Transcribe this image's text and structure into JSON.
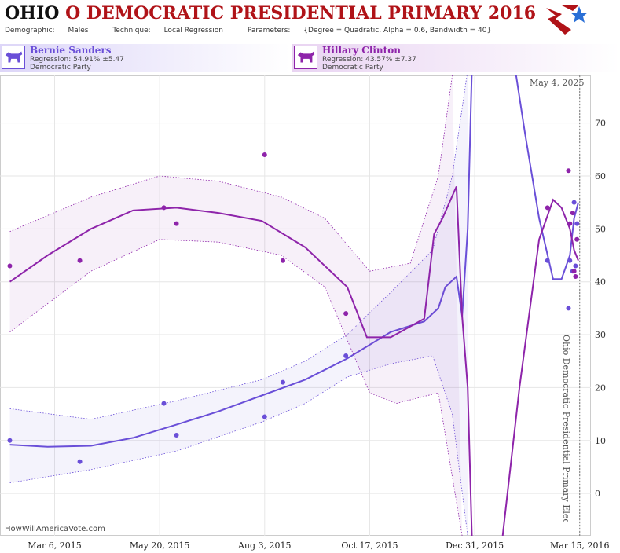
{
  "header": {
    "state": "OHIO",
    "title": "O DEMOCRATIC PRESIDENTIAL PRIMARY 2016",
    "demographic_label": "Demographic:",
    "demographic": "Males",
    "technique_label": "Technique:",
    "technique": "Local Regression",
    "parameters_label": "Parameters:",
    "parameters": "{Degree = Quadratic, Alpha = 0.6, Bandwidth = 40}"
  },
  "candidates": [
    {
      "name": "Bernie Sanders",
      "regression": "Regression: 54.91% ±5.47",
      "party": "Democratic Party",
      "color": "#6a4fd8"
    },
    {
      "name": "Hillary Clinton",
      "regression": "Regression: 43.57% ±7.37",
      "party": "Democratic Party",
      "color": "#8e24aa"
    }
  ],
  "watermark": "HowWillAmericaVote.com",
  "current_date": "May 4, 2025",
  "event_label": "Ohio Democratic Presidential Primary Election",
  "colors": {
    "sanders": "#6a4fd8",
    "clinton": "#8e24aa",
    "title_red": "#b01318"
  },
  "chart_data": {
    "type": "scatter",
    "x_tick_labels": [
      "Mar 6, 2015",
      "May 20, 2015",
      "Aug 3, 2015",
      "Oct 17, 2015",
      "Dec 31, 2015",
      "Mar 15, 2016"
    ],
    "x_ticks": [
      "2015-03-06",
      "2015-05-20",
      "2015-08-03",
      "2015-10-17",
      "2015-12-31",
      "2016-03-15"
    ],
    "xlim": [
      "2015-01-26",
      "2016-03-23"
    ],
    "y_ticks": [
      0,
      10,
      20,
      30,
      40,
      50,
      60,
      70
    ],
    "ylim": [
      -8,
      79
    ],
    "grid": true,
    "event_date": "2016-03-15",
    "series": [
      {
        "name": "Bernie Sanders",
        "color": "#6a4fd8",
        "points": [
          {
            "x": "2015-02-02",
            "y": 10
          },
          {
            "x": "2015-03-24",
            "y": 6
          },
          {
            "x": "2015-05-23",
            "y": 17
          },
          {
            "x": "2015-06-01",
            "y": 11
          },
          {
            "x": "2015-08-03",
            "y": 14.5
          },
          {
            "x": "2015-08-16",
            "y": 21
          },
          {
            "x": "2015-09-30",
            "y": 26
          },
          {
            "x": "2016-02-21",
            "y": 44
          },
          {
            "x": "2016-03-07",
            "y": 35
          },
          {
            "x": "2016-03-08",
            "y": 44
          },
          {
            "x": "2016-03-10",
            "y": 42
          },
          {
            "x": "2016-03-11",
            "y": 55
          },
          {
            "x": "2016-03-12",
            "y": 43
          },
          {
            "x": "2016-03-13",
            "y": 51
          }
        ],
        "trend": [
          {
            "x": "2015-02-02",
            "y": 9.2
          },
          {
            "x": "2015-03-01",
            "y": 8.8
          },
          {
            "x": "2015-04-01",
            "y": 9.0
          },
          {
            "x": "2015-05-01",
            "y": 10.5
          },
          {
            "x": "2015-06-01",
            "y": 13.0
          },
          {
            "x": "2015-07-01",
            "y": 15.5
          },
          {
            "x": "2015-08-01",
            "y": 18.5
          },
          {
            "x": "2015-09-01",
            "y": 21.5
          },
          {
            "x": "2015-10-01",
            "y": 25.5
          },
          {
            "x": "2015-11-01",
            "y": 30.5
          },
          {
            "x": "2015-11-25",
            "y": 32.5
          },
          {
            "x": "2015-12-05",
            "y": 35.0
          },
          {
            "x": "2015-12-10",
            "y": 39.0
          },
          {
            "x": "2015-12-18",
            "y": 41.0
          },
          {
            "x": "2015-12-22",
            "y": 33.5
          },
          {
            "x": "2015-12-26",
            "y": 50.0
          },
          {
            "x": "2015-12-29",
            "y": 80.0
          }
        ],
        "trend2": [
          {
            "x": "2016-01-29",
            "y": 80.0
          },
          {
            "x": "2016-02-05",
            "y": 68.0
          },
          {
            "x": "2016-02-15",
            "y": 52.0
          },
          {
            "x": "2016-02-25",
            "y": 40.5
          },
          {
            "x": "2016-03-02",
            "y": 40.5
          },
          {
            "x": "2016-03-08",
            "y": 45.0
          },
          {
            "x": "2016-03-11",
            "y": 52.0
          },
          {
            "x": "2016-03-14",
            "y": 55.0
          }
        ],
        "upper": [
          {
            "x": "2015-02-02",
            "y": 16.0
          },
          {
            "x": "2015-04-01",
            "y": 14.0
          },
          {
            "x": "2015-06-01",
            "y": 17.5
          },
          {
            "x": "2015-08-01",
            "y": 21.5
          },
          {
            "x": "2015-09-01",
            "y": 25.0
          },
          {
            "x": "2015-10-01",
            "y": 30.0
          },
          {
            "x": "2015-11-01",
            "y": 38.0
          },
          {
            "x": "2015-12-01",
            "y": 46.0
          },
          {
            "x": "2015-12-15",
            "y": 60.0
          },
          {
            "x": "2015-12-26",
            "y": 80.0
          }
        ],
        "lower": [
          {
            "x": "2015-02-02",
            "y": 2.0
          },
          {
            "x": "2015-04-01",
            "y": 4.5
          },
          {
            "x": "2015-06-01",
            "y": 8.0
          },
          {
            "x": "2015-08-01",
            "y": 13.5
          },
          {
            "x": "2015-09-01",
            "y": 17.0
          },
          {
            "x": "2015-10-01",
            "y": 22.0
          },
          {
            "x": "2015-11-01",
            "y": 24.5
          },
          {
            "x": "2015-12-01",
            "y": 26.0
          },
          {
            "x": "2015-12-15",
            "y": 15.0
          },
          {
            "x": "2015-12-26",
            "y": -8.0
          }
        ]
      },
      {
        "name": "Hillary Clinton",
        "color": "#8e24aa",
        "points": [
          {
            "x": "2015-02-02",
            "y": 43
          },
          {
            "x": "2015-03-24",
            "y": 44
          },
          {
            "x": "2015-05-23",
            "y": 54
          },
          {
            "x": "2015-06-01",
            "y": 51
          },
          {
            "x": "2015-08-03",
            "y": 64
          },
          {
            "x": "2015-08-16",
            "y": 44
          },
          {
            "x": "2015-09-30",
            "y": 34
          },
          {
            "x": "2016-02-21",
            "y": 54
          },
          {
            "x": "2016-03-07",
            "y": 61
          },
          {
            "x": "2016-03-08",
            "y": 51
          },
          {
            "x": "2016-03-10",
            "y": 53
          },
          {
            "x": "2016-03-11",
            "y": 42
          },
          {
            "x": "2016-03-12",
            "y": 41
          },
          {
            "x": "2016-03-13",
            "y": 48
          }
        ],
        "trend": [
          {
            "x": "2015-02-02",
            "y": 40.0
          },
          {
            "x": "2015-03-01",
            "y": 45.0
          },
          {
            "x": "2015-04-01",
            "y": 50.0
          },
          {
            "x": "2015-05-01",
            "y": 53.5
          },
          {
            "x": "2015-06-01",
            "y": 54.0
          },
          {
            "x": "2015-07-01",
            "y": 53.0
          },
          {
            "x": "2015-08-01",
            "y": 51.5
          },
          {
            "x": "2015-09-01",
            "y": 46.5
          },
          {
            "x": "2015-10-01",
            "y": 39.0
          },
          {
            "x": "2015-10-15",
            "y": 29.5
          },
          {
            "x": "2015-11-01",
            "y": 29.5
          },
          {
            "x": "2015-11-25",
            "y": 33.0
          },
          {
            "x": "2015-12-02",
            "y": 49.0
          },
          {
            "x": "2015-12-08",
            "y": 52.0
          },
          {
            "x": "2015-12-18",
            "y": 58.0
          },
          {
            "x": "2015-12-22",
            "y": 33.5
          },
          {
            "x": "2015-12-26",
            "y": 20.0
          },
          {
            "x": "2015-12-29",
            "y": -8.0
          }
        ],
        "trend2": [
          {
            "x": "2016-01-20",
            "y": -8.0
          },
          {
            "x": "2016-02-01",
            "y": 20.0
          },
          {
            "x": "2016-02-15",
            "y": 48.0
          },
          {
            "x": "2016-02-25",
            "y": 55.5
          },
          {
            "x": "2016-03-02",
            "y": 54.0
          },
          {
            "x": "2016-03-08",
            "y": 50.0
          },
          {
            "x": "2016-03-11",
            "y": 46.0
          },
          {
            "x": "2016-03-14",
            "y": 44.0
          }
        ],
        "upper": [
          {
            "x": "2015-02-02",
            "y": 49.5
          },
          {
            "x": "2015-04-01",
            "y": 56.0
          },
          {
            "x": "2015-05-20",
            "y": 60.0
          },
          {
            "x": "2015-07-01",
            "y": 59.0
          },
          {
            "x": "2015-08-15",
            "y": 56.0
          },
          {
            "x": "2015-09-15",
            "y": 52.0
          },
          {
            "x": "2015-10-17",
            "y": 42.0
          },
          {
            "x": "2015-11-15",
            "y": 43.5
          },
          {
            "x": "2015-12-05",
            "y": 60.0
          },
          {
            "x": "2015-12-15",
            "y": 79.0
          }
        ],
        "lower": [
          {
            "x": "2015-02-02",
            "y": 30.5
          },
          {
            "x": "2015-04-01",
            "y": 42.0
          },
          {
            "x": "2015-05-20",
            "y": 48.0
          },
          {
            "x": "2015-07-01",
            "y": 47.5
          },
          {
            "x": "2015-08-15",
            "y": 45.0
          },
          {
            "x": "2015-09-15",
            "y": 39.0
          },
          {
            "x": "2015-10-17",
            "y": 19.0
          },
          {
            "x": "2015-11-05",
            "y": 17.0
          },
          {
            "x": "2015-12-05",
            "y": 19.0
          },
          {
            "x": "2015-12-22",
            "y": -8.0
          }
        ]
      }
    ]
  }
}
